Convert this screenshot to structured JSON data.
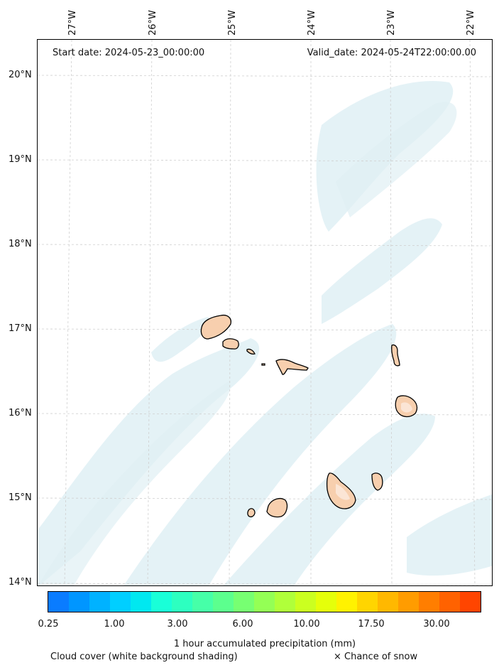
{
  "map": {
    "header_left": "Start date: 2024-05-23_00:00:00",
    "header_right": "Valid_date: 2024-05-24T22:00:00.00",
    "lon_labels": [
      "27°W",
      "26°W",
      "25°W",
      "24°W",
      "23°W",
      "22°W"
    ],
    "lat_labels": [
      "20°N",
      "19°N",
      "18°N",
      "17°N",
      "16°N",
      "15°N",
      "14°N"
    ],
    "land_color": "#f7cfae",
    "cloud_color": "#cde7ee"
  },
  "colorbar": {
    "title": "1 hour accumulated precipitation (mm)",
    "tick_labels": [
      "0.25",
      "1.00",
      "3.00",
      "6.00",
      "10.00",
      "17.50",
      "30.00"
    ],
    "colors": [
      "#0a7cff",
      "#0096ff",
      "#00b2ff",
      "#00cfff",
      "#00e8f0",
      "#19ffd8",
      "#2dffc0",
      "#46ffa8",
      "#5cff8e",
      "#77ff72",
      "#94ff55",
      "#b0ff3a",
      "#cbff20",
      "#e5ff0a",
      "#fff200",
      "#ffd500",
      "#ffb800",
      "#ff9c00",
      "#ff7e00",
      "#ff6200",
      "#ff4500"
    ]
  },
  "legend": {
    "cloud_note": "Cloud cover (white background shading)",
    "snow_note": "× Chance of snow"
  }
}
